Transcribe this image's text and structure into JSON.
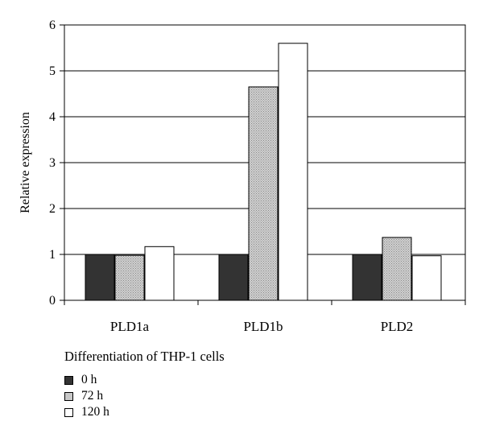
{
  "chart_data": {
    "type": "bar",
    "categories": [
      "PLD1a",
      "PLD1b",
      "PLD2"
    ],
    "series": [
      {
        "name": "0 h",
        "values": [
          1.0,
          1.0,
          1.0
        ],
        "color": "#333333"
      },
      {
        "name": "72 h",
        "values": [
          0.98,
          4.65,
          1.37
        ],
        "color": "#c8c8c8"
      },
      {
        "name": "120 h",
        "values": [
          1.17,
          5.6,
          0.97
        ],
        "color": "#ffffff"
      }
    ],
    "ylabel": "Relative expression",
    "ylim": [
      0,
      6
    ],
    "yticks": [
      0,
      1,
      2,
      3,
      4,
      5,
      6
    ],
    "grid": true,
    "legend_title": "Differentiation of THP-1 cells",
    "legend_position": "bottom-left"
  }
}
